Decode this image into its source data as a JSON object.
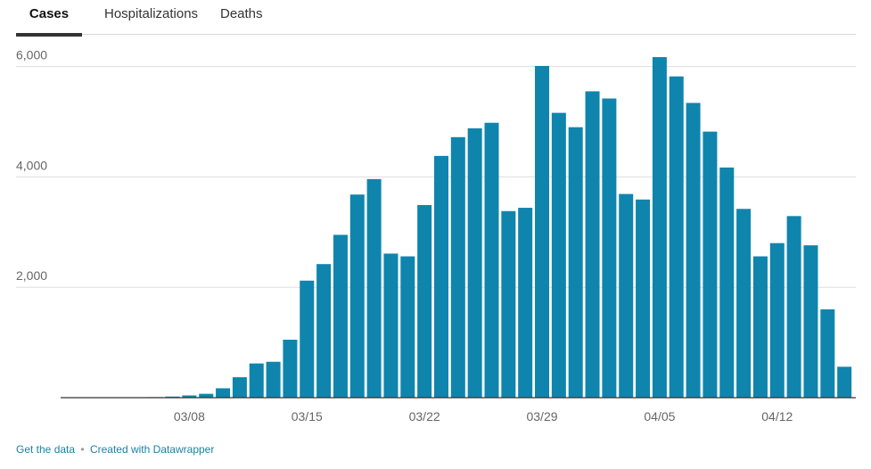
{
  "tabs": [
    {
      "label": "Cases",
      "active": true
    },
    {
      "label": "Hospitalizations",
      "active": false
    },
    {
      "label": "Deaths",
      "active": false
    }
  ],
  "footer": {
    "get_data": "Get the data",
    "separator": "•",
    "credit": "Created with Datawrapper"
  },
  "colors": {
    "bar": "#0f85ad",
    "grid": "#dddddd",
    "axis": "#333333"
  },
  "chart_data": {
    "type": "bar",
    "title": "",
    "xlabel": "",
    "ylabel": "",
    "ylim": [
      0,
      6300
    ],
    "grid": true,
    "y_ticks": [
      2000,
      4000,
      6000
    ],
    "y_tick_labels": [
      "2,000",
      "4,000",
      "6,000"
    ],
    "x_tick_labels": [
      "03/08",
      "03/15",
      "03/22",
      "03/29",
      "04/05",
      "04/12"
    ],
    "categories": [
      "03/01",
      "03/02",
      "03/03",
      "03/04",
      "03/05",
      "03/06",
      "03/07",
      "03/08",
      "03/09",
      "03/10",
      "03/11",
      "03/12",
      "03/13",
      "03/14",
      "03/15",
      "03/16",
      "03/17",
      "03/18",
      "03/19",
      "03/20",
      "03/21",
      "03/22",
      "03/23",
      "03/24",
      "03/25",
      "03/26",
      "03/27",
      "03/28",
      "03/29",
      "03/30",
      "03/31",
      "04/01",
      "04/02",
      "04/03",
      "04/04",
      "04/05",
      "04/06",
      "04/07",
      "04/08",
      "04/09",
      "04/10",
      "04/11",
      "04/12",
      "04/13",
      "04/14",
      "04/15",
      "04/16",
      "04/17"
    ],
    "values": [
      0,
      0,
      0,
      2,
      5,
      10,
      20,
      40,
      70,
      170,
      370,
      620,
      650,
      1050,
      2120,
      2420,
      2950,
      3680,
      3960,
      2610,
      2560,
      3490,
      4380,
      4720,
      4880,
      4980,
      3380,
      3440,
      6010,
      5160,
      4900,
      5550,
      5420,
      3690,
      3590,
      6170,
      5820,
      5340,
      4820,
      4170,
      3420,
      2560,
      2800,
      3290,
      2760,
      1600,
      560,
      0
    ]
  }
}
